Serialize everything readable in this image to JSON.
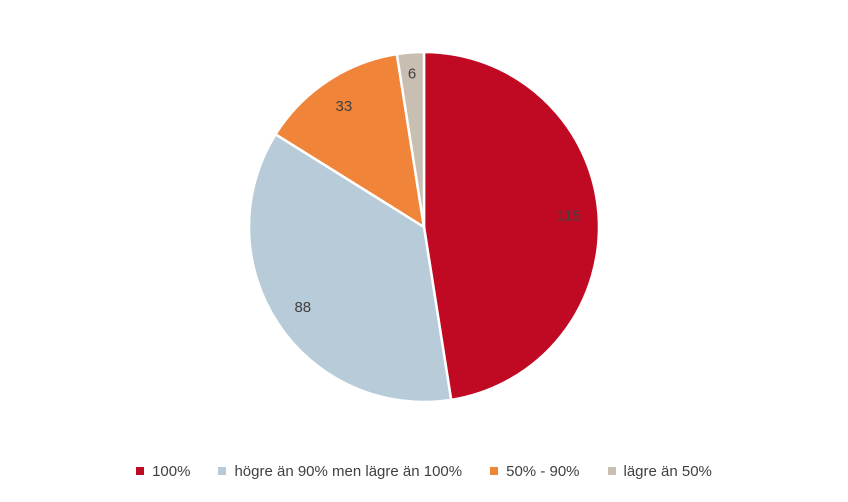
{
  "chart_data": {
    "type": "pie",
    "title": "",
    "categories": [
      "100%",
      "högre än 90% men lägre än 100%",
      "50% - 90%",
      "lägre än 50%"
    ],
    "values": [
      115,
      88,
      33,
      6
    ],
    "colors": [
      "#C00A23",
      "#B7CCD8",
      "#F0853A",
      "#C8BEB1"
    ],
    "start_angle_deg": 0,
    "direction": "clockwise",
    "legend_position": "bottom",
    "label_color": "#404040"
  }
}
